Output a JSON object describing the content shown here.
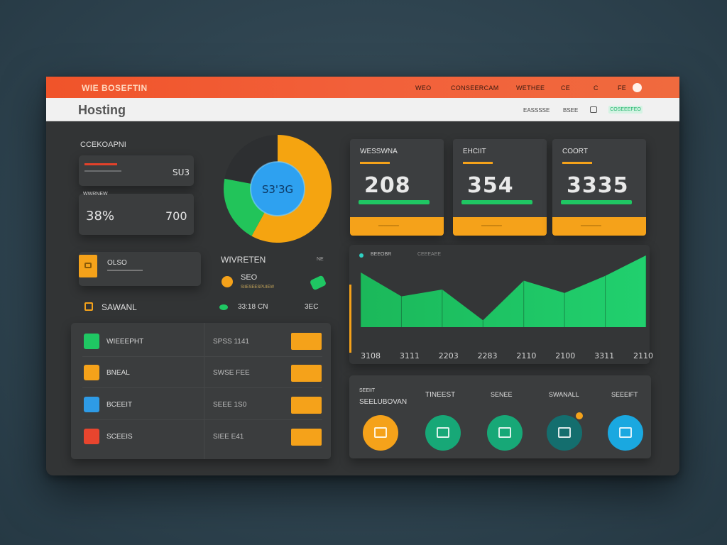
{
  "header": {
    "brand": "WIE BOSEFTIN",
    "nav": [
      "WEO",
      "CONSEERCAM",
      "WETHEE",
      "CE",
      "C",
      "FE"
    ],
    "app_title": "Hosting",
    "subnav": [
      "EASSSSE",
      "BSEE"
    ],
    "badge": "COSEEEFEO"
  },
  "left": {
    "section_title": "CCEKOAPNI",
    "card1": {
      "value": "SU3"
    },
    "card2": {
      "label": "WWRNEW",
      "percent": "38%",
      "value": "700"
    },
    "small_card": {
      "label": "OLSO"
    },
    "small_label": "SAWANL"
  },
  "pie": {
    "center_label": "S3'3G",
    "segments": [
      {
        "name": "orange",
        "fraction": 0.58,
        "color": "#f5a410"
      },
      {
        "name": "green",
        "fraction": 0.2,
        "color": "#22c45a"
      },
      {
        "name": "dark",
        "fraction": 0.22,
        "color": "#2d2f31"
      }
    ]
  },
  "mid": {
    "title": "WIVRETEN",
    "corner": "NE",
    "item1": {
      "value": "SEO",
      "sub": "SIIESEESPUIEW"
    },
    "item2": {
      "value": "33:18",
      "unit": "CN",
      "right": "3EC"
    }
  },
  "metrics": [
    {
      "title": "WESSWNA",
      "value": "208"
    },
    {
      "title": "EHCIIT",
      "value": "354"
    },
    {
      "title": "COORT",
      "value": "3335"
    }
  ],
  "chart_data": {
    "type": "area",
    "title": "",
    "legend": [
      "BEEOBR",
      "CEEEAEE"
    ],
    "categories": [
      "3108",
      "3111",
      "2203",
      "2283",
      "2110",
      "2100",
      "3311",
      "2110"
    ],
    "values": [
      80,
      45,
      55,
      10,
      68,
      50,
      75,
      105
    ],
    "ylim": [
      0,
      110
    ],
    "color": "#1fc763"
  },
  "list": [
    {
      "name": "WIEEEPHT",
      "value": "SPSS 1141",
      "icon_color": "#1fc763"
    },
    {
      "name": "BNEAL",
      "value": "SWSE FEE",
      "icon_color": "#f5a21a"
    },
    {
      "name": "BCEEIT",
      "value": "SEEE 1S0",
      "icon_color": "#2e9be6"
    },
    {
      "name": "SCEEIS",
      "value": "SIEE E41",
      "icon_color": "#e8452e"
    }
  ],
  "bottom": {
    "head": "SEEIIT",
    "label": "SEELUBOVAN",
    "cols": [
      "TINEEST",
      "SENEE",
      "SWANALL",
      "SEEEIFT"
    ],
    "circles": [
      {
        "name": "orange",
        "color": "#f5a21a"
      },
      {
        "name": "green",
        "color": "#17a877"
      },
      {
        "name": "teal",
        "color": "#17a877"
      },
      {
        "name": "deep-teal",
        "color": "#146e6e"
      },
      {
        "name": "cyan",
        "color": "#1aa8e0"
      }
    ]
  }
}
